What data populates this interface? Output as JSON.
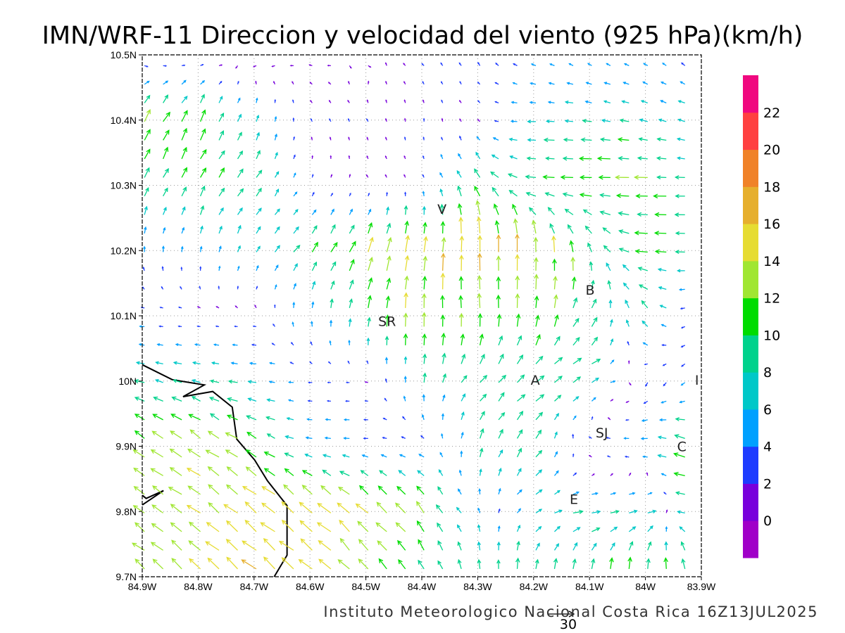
{
  "chart_data": {
    "type": "vector-field",
    "title": "IMN/WRF-11 Direccion y velocidad del viento (925 hPa)(km/h)",
    "footer": "Instituto Meteorologico Nacional Costa Rica 16Z13JUL2025",
    "units": "km/h",
    "xlim": [
      -84.9,
      -83.9
    ],
    "ylim": [
      9.7,
      10.5
    ],
    "x_ticks": [
      {
        "value": -84.9,
        "label": "84.9W"
      },
      {
        "value": -84.8,
        "label": "84.8W"
      },
      {
        "value": -84.7,
        "label": "84.7W"
      },
      {
        "value": -84.6,
        "label": "84.6W"
      },
      {
        "value": -84.5,
        "label": "84.5W"
      },
      {
        "value": -84.4,
        "label": "84.4W"
      },
      {
        "value": -84.3,
        "label": "84.3W"
      },
      {
        "value": -84.2,
        "label": "84.2W"
      },
      {
        "value": -84.1,
        "label": "84.1W"
      },
      {
        "value": -84.0,
        "label": "84W"
      },
      {
        "value": -83.9,
        "label": "83.9W"
      }
    ],
    "y_ticks": [
      {
        "value": 9.7,
        "label": "9.7N"
      },
      {
        "value": 9.8,
        "label": "9.8N"
      },
      {
        "value": 9.9,
        "label": "9.9N"
      },
      {
        "value": 10.0,
        "label": "10N"
      },
      {
        "value": 10.1,
        "label": "10.1N"
      },
      {
        "value": 10.2,
        "label": "10.2N"
      },
      {
        "value": 10.3,
        "label": "10.3N"
      },
      {
        "value": 10.4,
        "label": "10.4N"
      },
      {
        "value": 10.5,
        "label": "10.5N"
      }
    ],
    "grid": true,
    "reference_vector": {
      "value": 30,
      "label": "30"
    },
    "colorbar": {
      "levels": [
        -2,
        0,
        2,
        4,
        6,
        8,
        10,
        12,
        14,
        16,
        18,
        20,
        22,
        24
      ],
      "labels": [
        "0",
        "2",
        "4",
        "6",
        "8",
        "10",
        "12",
        "14",
        "16",
        "18",
        "20",
        "22"
      ],
      "colors": [
        "#a000c8",
        "#7800dc",
        "#1e3cff",
        "#00a0ff",
        "#00c8c8",
        "#00d28c",
        "#00dc00",
        "#a0e632",
        "#e6dc32",
        "#e6af2d",
        "#f08228",
        "#ff4040",
        "#f0087f"
      ]
    },
    "field_grid": {
      "lons": [
        -84.9,
        -84.8,
        -84.7,
        -84.6,
        -84.5,
        -84.4,
        -84.3,
        -84.2,
        -84.1,
        -84.0,
        -83.9
      ],
      "lats": [
        9.7,
        9.8,
        9.9,
        10.0,
        10.1,
        10.2,
        10.3,
        10.4,
        10.5
      ],
      "u": [
        [
          -10,
          -11,
          -12,
          -11,
          -9,
          -5,
          -1,
          1,
          1,
          0,
          -2
        ],
        [
          -10,
          -11,
          -12,
          -12,
          -10,
          -8,
          -2,
          6,
          9,
          8,
          -12
        ],
        [
          -10,
          -11,
          -10,
          -6,
          -5,
          -4,
          3,
          5,
          -4,
          -6,
          -14
        ],
        [
          -8,
          -8,
          -7,
          -3,
          -2,
          1,
          6,
          8,
          8,
          -2,
          -3
        ],
        [
          -3,
          -2,
          -1,
          0,
          2,
          0,
          -1,
          1,
          5,
          -6,
          -2
        ],
        [
          0,
          1,
          3,
          6,
          5,
          2,
          0,
          0,
          -3,
          -10,
          -9
        ],
        [
          4,
          5,
          5,
          1,
          0,
          -1,
          -5,
          -10,
          -12,
          -12,
          -8
        ],
        [
          6,
          5,
          2,
          -1,
          -1,
          0,
          -1,
          -7,
          -8,
          -7,
          -6
        ],
        [
          3,
          2,
          -2,
          -1,
          1,
          -2,
          -2,
          -3,
          -3,
          -3,
          -2
        ]
      ],
      "v": [
        [
          8,
          9,
          10,
          10,
          9,
          8,
          10,
          10,
          10,
          12,
          12
        ],
        [
          7,
          8,
          9,
          10,
          10,
          10,
          4,
          3,
          1,
          2,
          1
        ],
        [
          7,
          8,
          6,
          1,
          0,
          1,
          8,
          8,
          1,
          0,
          5
        ],
        [
          2,
          2,
          1,
          0,
          0,
          8,
          7,
          6,
          4,
          -3,
          -3
        ],
        [
          0,
          0,
          0,
          6,
          10,
          13,
          13,
          11,
          9,
          7,
          -4
        ],
        [
          5,
          5,
          6,
          8,
          12,
          15,
          15,
          15,
          10,
          1,
          0
        ],
        [
          9,
          9,
          8,
          2,
          0,
          2,
          10,
          1,
          0,
          0,
          0
        ],
        [
          10,
          10,
          6,
          2,
          2,
          2,
          1,
          0,
          1,
          2,
          2
        ],
        [
          -3,
          -1,
          -2,
          0,
          -1,
          2,
          3,
          2,
          2,
          2,
          3
        ]
      ]
    },
    "places": [
      {
        "label": "V",
        "lon": -84.364,
        "lat": 10.264
      },
      {
        "label": "SR",
        "lon": -84.462,
        "lat": 10.092
      },
      {
        "label": "B",
        "lon": -84.099,
        "lat": 10.14
      },
      {
        "label": "A",
        "lon": -84.197,
        "lat": 10.002
      },
      {
        "label": "I",
        "lon": -83.908,
        "lat": 10.002
      },
      {
        "label": "SJ",
        "lon": -84.078,
        "lat": 9.921
      },
      {
        "label": "C",
        "lon": -83.935,
        "lat": 9.9
      },
      {
        "label": "E",
        "lon": -84.128,
        "lat": 9.819
      }
    ],
    "coastline": [
      [
        [
          -84.9,
          10.025
        ],
        [
          -84.846,
          10.002
        ],
        [
          -84.789,
          9.994
        ],
        [
          -84.827,
          9.976
        ],
        [
          -84.774,
          9.984
        ],
        [
          -84.739,
          9.96
        ],
        [
          -84.731,
          9.911
        ],
        [
          -84.699,
          9.879
        ],
        [
          -84.676,
          9.847
        ],
        [
          -84.641,
          9.809
        ],
        [
          -84.641,
          9.733
        ],
        [
          -84.664,
          9.7
        ]
      ],
      [
        [
          -84.9,
          9.81
        ],
        [
          -84.862,
          9.832
        ],
        [
          -84.893,
          9.82
        ],
        [
          -84.9,
          9.825
        ]
      ]
    ]
  }
}
